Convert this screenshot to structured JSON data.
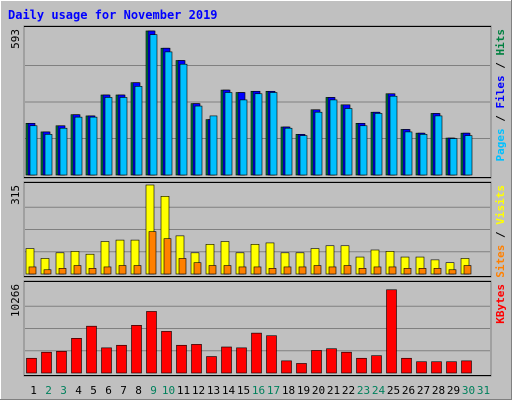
{
  "chart_data": [
    {
      "type": "bar",
      "title": "Daily usage for November 2019",
      "panel": "hits-files-pages",
      "y_max_label": "593",
      "ylim": [
        0,
        593
      ],
      "grid": true,
      "legend": [
        {
          "name": "Pages",
          "color": "#00c0ff"
        },
        {
          "name": "Files",
          "color": "#0000ff"
        },
        {
          "name": "Hits",
          "color": "#008040"
        }
      ],
      "categories": [
        "1",
        "2",
        "3",
        "4",
        "5",
        "6",
        "7",
        "8",
        "9",
        "10",
        "11",
        "12",
        "13",
        "14",
        "15",
        "16",
        "17",
        "18",
        "19",
        "20",
        "21",
        "22",
        "23",
        "24",
        "25",
        "26",
        "27",
        "28",
        "29",
        "30",
        "31"
      ],
      "weekend_days": [
        "2",
        "3",
        "9",
        "10",
        "16",
        "17",
        "23",
        "24",
        "30",
        "31"
      ],
      "series": [
        {
          "name": "Hits",
          "values": [
            210,
            175,
            200,
            245,
            240,
            325,
            325,
            375,
            585,
            515,
            465,
            290,
            225,
            345,
            335,
            340,
            340,
            195,
            165,
            265,
            315,
            285,
            210,
            255,
            330,
            185,
            170,
            250,
            150,
            170,
            0
          ]
        },
        {
          "name": "Files",
          "values": [
            210,
            175,
            200,
            245,
            240,
            325,
            325,
            375,
            585,
            515,
            465,
            290,
            225,
            345,
            335,
            340,
            340,
            195,
            165,
            265,
            315,
            285,
            210,
            255,
            330,
            185,
            170,
            250,
            150,
            170,
            0
          ]
        },
        {
          "name": "Pages",
          "values": [
            200,
            165,
            190,
            235,
            235,
            315,
            315,
            360,
            570,
            500,
            450,
            280,
            240,
            335,
            305,
            330,
            335,
            190,
            160,
            255,
            305,
            270,
            200,
            250,
            320,
            175,
            165,
            240,
            148,
            160,
            0
          ]
        }
      ]
    },
    {
      "type": "bar",
      "panel": "visits-sites",
      "y_max_label": "315",
      "ylim": [
        0,
        315
      ],
      "grid": true,
      "legend": [
        {
          "name": "Sites",
          "color": "#ff8000"
        },
        {
          "name": "Visits",
          "color": "#ffff00"
        }
      ],
      "categories": [
        "1",
        "2",
        "3",
        "4",
        "5",
        "6",
        "7",
        "8",
        "9",
        "10",
        "11",
        "12",
        "13",
        "14",
        "15",
        "16",
        "17",
        "18",
        "19",
        "20",
        "21",
        "22",
        "23",
        "24",
        "25",
        "26",
        "27",
        "28",
        "29",
        "30",
        "31"
      ],
      "series": [
        {
          "name": "Visits",
          "values": [
            90,
            55,
            75,
            80,
            70,
            115,
            120,
            120,
            315,
            275,
            135,
            75,
            105,
            115,
            75,
            105,
            110,
            75,
            75,
            90,
            100,
            100,
            60,
            85,
            80,
            60,
            60,
            50,
            40,
            55,
            0
          ]
        },
        {
          "name": "Sites",
          "values": [
            25,
            15,
            20,
            30,
            20,
            25,
            30,
            30,
            150,
            125,
            55,
            40,
            30,
            30,
            25,
            25,
            20,
            25,
            25,
            30,
            25,
            30,
            20,
            25,
            25,
            20,
            20,
            20,
            15,
            30,
            0
          ]
        }
      ]
    },
    {
      "type": "bar",
      "panel": "kbytes",
      "y_max_label": "10266",
      "ylim": [
        0,
        10266
      ],
      "grid": true,
      "legend": [
        {
          "name": "KBytes",
          "color": "#ff0000"
        }
      ],
      "categories": [
        "1",
        "2",
        "3",
        "4",
        "5",
        "6",
        "7",
        "8",
        "9",
        "10",
        "11",
        "12",
        "13",
        "14",
        "15",
        "16",
        "17",
        "18",
        "19",
        "20",
        "21",
        "22",
        "23",
        "24",
        "25",
        "26",
        "27",
        "28",
        "29",
        "30",
        "31"
      ],
      "series": [
        {
          "name": "KBytes",
          "values": [
            1700,
            2400,
            2500,
            4000,
            5400,
            2900,
            3200,
            5500,
            7100,
            4800,
            3200,
            3300,
            1900,
            3000,
            2900,
            4600,
            4300,
            1400,
            1100,
            2600,
            2800,
            2400,
            1700,
            2000,
            9600,
            1700,
            1300,
            1300,
            1300,
            1400,
            0
          ]
        }
      ]
    }
  ],
  "colors": {
    "background": "#c0c0c0",
    "panel": "#ffffff",
    "title": "#0000ff",
    "label": "#000000",
    "weekday": "#000000",
    "weekend": "#00805c",
    "gridline": "#808080",
    "hits": "#008040",
    "files": "#0000ff",
    "pages": "#00c0ff",
    "visits": "#ffff00",
    "sites": "#ff8000",
    "kbytes": "#ff0000",
    "separator": "#000000"
  }
}
